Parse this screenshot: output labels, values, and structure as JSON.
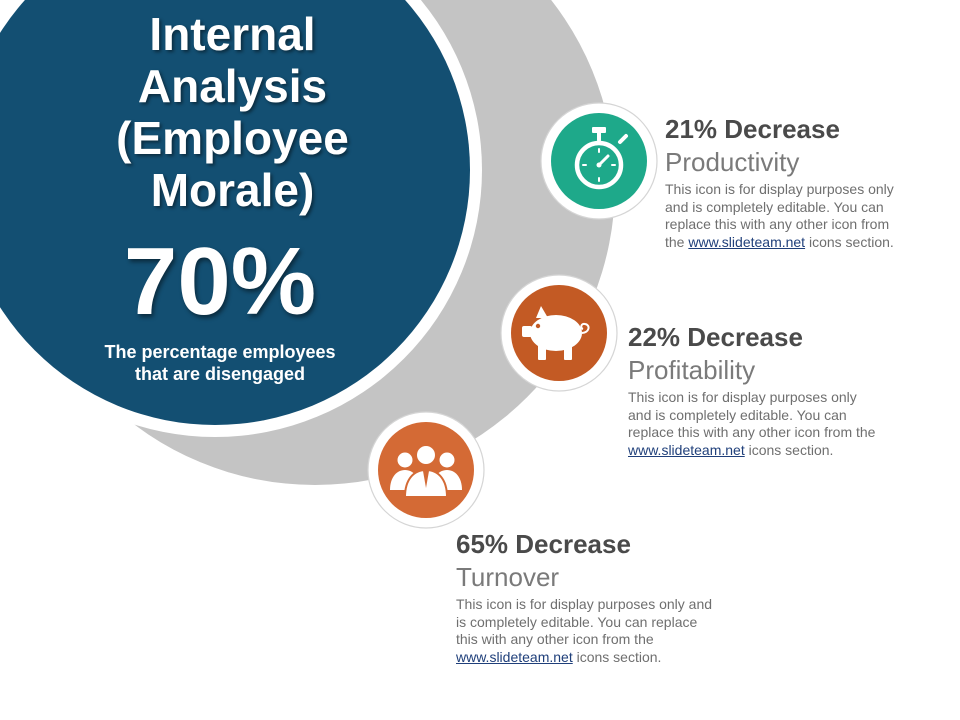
{
  "slide": {
    "title_lines": [
      "Internal",
      "Analysis",
      "(Employee",
      "Morale)"
    ],
    "big_stat": "70%",
    "stat_caption_lines": [
      "The percentage employees",
      "that are disengaged"
    ]
  },
  "items": [
    {
      "heading": "21% Decrease",
      "subtitle": "Productivity",
      "icon": "stopwatch-icon",
      "color": "#1ea98a",
      "body_lines": [
        "This icon is for display purposes only",
        "and is completely editable. You can",
        "replace this with any other icon from"
      ],
      "body_last_prefix": "the ",
      "link": "www.slideteam.net",
      "body_suffix": " icons section."
    },
    {
      "heading": "22% Decrease",
      "subtitle": "Profitability",
      "icon": "piggy-bank-icon",
      "color": "#c35a24",
      "body_lines": [
        "This icon is for display purposes only",
        "and is completely editable. You can",
        "replace this with any other icon from the"
      ],
      "body_last_prefix": "",
      "link": "www.slideteam.net",
      "body_suffix": " icons section."
    },
    {
      "heading": "65% Decrease",
      "subtitle": "Turnover",
      "icon": "team-icon",
      "color": "#d46a35",
      "body_lines": [
        "This icon is for display purposes only and",
        "is completely editable. You can replace",
        "this with any other icon from the"
      ],
      "body_last_prefix": "",
      "link": "www.slideteam.net",
      "body_suffix": " icons section."
    }
  ],
  "colors": {
    "main_circle": "#134f72",
    "grey_arc": "#c4c4c4"
  }
}
